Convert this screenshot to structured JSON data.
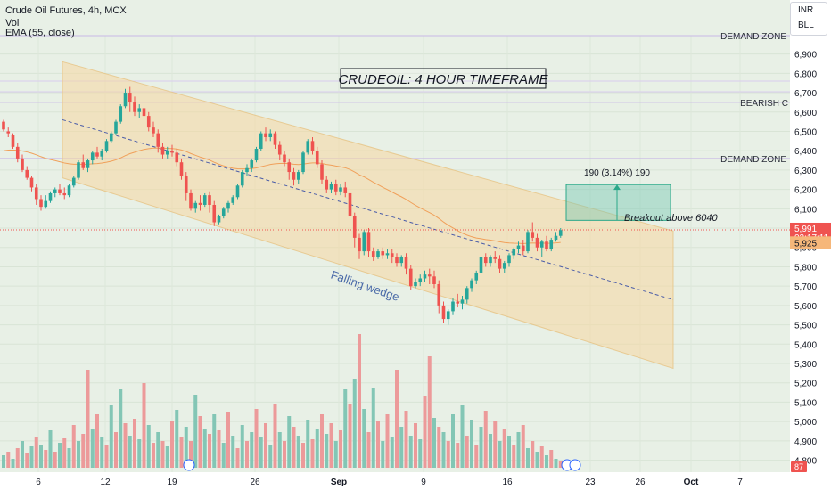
{
  "header": {
    "symbol": "Crude Oil Futures, 4h, MCX",
    "vol_label": "Vol",
    "ema_label": "EMA (55, close)",
    "currency": "INR",
    "unit": "BLL"
  },
  "chart_data": {
    "type": "candlestick",
    "title": "CRUDEOIL: 4 HOUR TIMEFRAME",
    "y_ticks": [
      "6,900",
      "6,800",
      "6,700",
      "6,600",
      "6,500",
      "6,400",
      "6,300",
      "6,200",
      "6,100",
      "6,000",
      "5,900",
      "5,800",
      "5,700",
      "5,600",
      "5,500",
      "5,400",
      "5,300",
      "5,200",
      "5,100",
      "5,000",
      "4,900",
      "4,800"
    ],
    "y_tick_values": [
      6900,
      6800,
      6700,
      6600,
      6500,
      6400,
      6300,
      6200,
      6100,
      6000,
      5900,
      5800,
      5700,
      5600,
      5500,
      5400,
      5300,
      5200,
      5100,
      5000,
      4900,
      4800
    ],
    "x_ticks": [
      "6",
      "12",
      "19",
      "26",
      "Sep",
      "9",
      "16",
      "23",
      "26",
      "Oct",
      "7"
    ],
    "ylim": [
      4775,
      6995
    ],
    "zones": [
      {
        "label": "DEMAND ZONE",
        "price": 6995
      },
      {
        "label": "BEARISH C",
        "price": 6650
      },
      {
        "label": "DEMAND ZONE",
        "price": 6360
      }
    ],
    "current_price": {
      "value": 5991,
      "label": "5,991",
      "countdown": "03:17:11"
    },
    "ema_value": {
      "value": 5925,
      "label": "5,925"
    },
    "volume_badge": "87",
    "annotations": {
      "pattern": "Falling wedge",
      "measure": "190 (3.14%) 190",
      "breakout": "Breakout above 6040"
    },
    "channel": {
      "upper": [
        [
          70,
          6860
        ],
        [
          755,
          5985
        ]
      ],
      "lower": [
        [
          70,
          6260
        ],
        [
          755,
          5275
        ]
      ],
      "mid": [
        [
          70,
          6560
        ],
        [
          755,
          5630
        ]
      ]
    },
    "target_box": {
      "from": 6040,
      "to": 6225,
      "x0": 635,
      "x1": 752
    },
    "candles": [
      [
        0,
        6550,
        6560,
        6510,
        6500
      ],
      [
        1,
        6500,
        6520,
        6490,
        6470
      ],
      [
        2,
        6480,
        6490,
        6420,
        6410
      ],
      [
        3,
        6420,
        6440,
        6360,
        6340
      ],
      [
        4,
        6360,
        6380,
        6300,
        6290
      ],
      [
        5,
        6300,
        6320,
        6260,
        6250
      ],
      [
        6,
        6260,
        6270,
        6210,
        6190
      ],
      [
        7,
        6210,
        6230,
        6150,
        6120
      ],
      [
        8,
        6150,
        6170,
        6110,
        6090
      ],
      [
        9,
        6110,
        6170,
        6140,
        6100
      ],
      [
        10,
        6140,
        6190,
        6180,
        6130
      ],
      [
        11,
        6180,
        6210,
        6200,
        6160
      ],
      [
        12,
        6200,
        6230,
        6180,
        6170
      ],
      [
        13,
        6180,
        6210,
        6170,
        6150
      ],
      [
        14,
        6170,
        6230,
        6220,
        6160
      ],
      [
        15,
        6220,
        6270,
        6260,
        6210
      ],
      [
        16,
        6260,
        6350,
        6340,
        6250
      ],
      [
        17,
        6340,
        6380,
        6310,
        6300
      ],
      [
        18,
        6310,
        6360,
        6350,
        6290
      ],
      [
        19,
        6350,
        6400,
        6390,
        6330
      ],
      [
        20,
        6390,
        6420,
        6370,
        6360
      ],
      [
        21,
        6370,
        6410,
        6400,
        6350
      ],
      [
        22,
        6400,
        6460,
        6450,
        6390
      ],
      [
        23,
        6450,
        6500,
        6490,
        6440
      ],
      [
        24,
        6490,
        6560,
        6550,
        6480
      ],
      [
        25,
        6550,
        6640,
        6630,
        6540
      ],
      [
        26,
        6630,
        6720,
        6700,
        6620
      ],
      [
        27,
        6700,
        6730,
        6650,
        6600
      ],
      [
        28,
        6650,
        6680,
        6600,
        6580
      ],
      [
        29,
        6600,
        6640,
        6620,
        6570
      ],
      [
        30,
        6620,
        6650,
        6580,
        6560
      ],
      [
        31,
        6580,
        6600,
        6520,
        6500
      ],
      [
        32,
        6520,
        6550,
        6490,
        6470
      ],
      [
        33,
        6490,
        6510,
        6420,
        6390
      ],
      [
        34,
        6420,
        6440,
        6380,
        6360
      ],
      [
        35,
        6380,
        6420,
        6400,
        6360
      ],
      [
        36,
        6400,
        6430,
        6390,
        6370
      ],
      [
        37,
        6390,
        6410,
        6340,
        6320
      ],
      [
        38,
        6340,
        6360,
        6270,
        6250
      ],
      [
        39,
        6270,
        6290,
        6180,
        6140
      ],
      [
        40,
        6180,
        6200,
        6100,
        6090
      ],
      [
        41,
        6100,
        6140,
        6130,
        6080
      ],
      [
        42,
        6130,
        6170,
        6120,
        6090
      ],
      [
        43,
        6120,
        6180,
        6170,
        6110
      ],
      [
        44,
        6170,
        6190,
        6120,
        6080
      ],
      [
        45,
        6120,
        6140,
        6030,
        6010
      ],
      [
        46,
        6030,
        6070,
        6060,
        6020
      ],
      [
        47,
        6060,
        6110,
        6100,
        6050
      ],
      [
        48,
        6100,
        6140,
        6130,
        6080
      ],
      [
        49,
        6130,
        6170,
        6160,
        6120
      ],
      [
        50,
        6160,
        6230,
        6220,
        6150
      ],
      [
        51,
        6220,
        6300,
        6290,
        6210
      ],
      [
        52,
        6290,
        6330,
        6310,
        6270
      ],
      [
        53,
        6310,
        6360,
        6350,
        6290
      ],
      [
        54,
        6350,
        6420,
        6410,
        6340
      ],
      [
        55,
        6410,
        6500,
        6490,
        6400
      ],
      [
        56,
        6490,
        6520,
        6470,
        6450
      ],
      [
        57,
        6470,
        6510,
        6490,
        6450
      ],
      [
        58,
        6490,
        6500,
        6430,
        6410
      ],
      [
        59,
        6430,
        6450,
        6380,
        6350
      ],
      [
        60,
        6380,
        6400,
        6340,
        6320
      ],
      [
        61,
        6340,
        6360,
        6290,
        6250
      ],
      [
        62,
        6290,
        6310,
        6250,
        6220
      ],
      [
        63,
        6250,
        6300,
        6290,
        6230
      ],
      [
        64,
        6290,
        6400,
        6390,
        6280
      ],
      [
        65,
        6390,
        6460,
        6450,
        6380
      ],
      [
        66,
        6450,
        6470,
        6400,
        6380
      ],
      [
        67,
        6400,
        6420,
        6330,
        6310
      ],
      [
        68,
        6330,
        6350,
        6250,
        6230
      ],
      [
        69,
        6250,
        6270,
        6200,
        6180
      ],
      [
        70,
        6200,
        6240,
        6230,
        6180
      ],
      [
        71,
        6230,
        6250,
        6190,
        6170
      ],
      [
        72,
        6190,
        6230,
        6210,
        6170
      ],
      [
        73,
        6210,
        6240,
        6180,
        6160
      ],
      [
        74,
        6180,
        6200,
        6060,
        6040
      ],
      [
        75,
        6060,
        6080,
        5950,
        5900
      ],
      [
        76,
        5950,
        5970,
        5880,
        5840
      ],
      [
        77,
        5880,
        5990,
        5980,
        5860
      ],
      [
        78,
        5980,
        6000,
        5880,
        5850
      ],
      [
        79,
        5880,
        5900,
        5850,
        5830
      ],
      [
        80,
        5850,
        5890,
        5880,
        5840
      ],
      [
        81,
        5880,
        5900,
        5860,
        5840
      ],
      [
        82,
        5860,
        5890,
        5870,
        5840
      ],
      [
        83,
        5870,
        5890,
        5850,
        5820
      ],
      [
        84,
        5850,
        5870,
        5820,
        5800
      ],
      [
        85,
        5820,
        5860,
        5850,
        5800
      ],
      [
        86,
        5850,
        5870,
        5790,
        5760
      ],
      [
        87,
        5790,
        5810,
        5700,
        5680
      ],
      [
        88,
        5700,
        5740,
        5720,
        5690
      ],
      [
        89,
        5720,
        5760,
        5740,
        5700
      ],
      [
        90,
        5740,
        5780,
        5760,
        5720
      ],
      [
        91,
        5760,
        5790,
        5750,
        5710
      ],
      [
        92,
        5750,
        5780,
        5710,
        5690
      ],
      [
        93,
        5710,
        5730,
        5600,
        5560
      ],
      [
        94,
        5600,
        5620,
        5530,
        5510
      ],
      [
        95,
        5530,
        5580,
        5570,
        5500
      ],
      [
        96,
        5570,
        5640,
        5620,
        5550
      ],
      [
        97,
        5620,
        5660,
        5610,
        5590
      ],
      [
        98,
        5610,
        5650,
        5630,
        5580
      ],
      [
        99,
        5630,
        5700,
        5690,
        5610
      ],
      [
        100,
        5690,
        5740,
        5730,
        5670
      ],
      [
        101,
        5730,
        5780,
        5770,
        5710
      ],
      [
        102,
        5770,
        5860,
        5850,
        5760
      ],
      [
        103,
        5850,
        5870,
        5820,
        5800
      ],
      [
        104,
        5820,
        5860,
        5850,
        5800
      ],
      [
        105,
        5850,
        5880,
        5840,
        5820
      ],
      [
        106,
        5840,
        5860,
        5790,
        5770
      ],
      [
        107,
        5790,
        5830,
        5820,
        5770
      ],
      [
        108,
        5820,
        5870,
        5860,
        5800
      ],
      [
        109,
        5860,
        5900,
        5890,
        5840
      ],
      [
        110,
        5890,
        5930,
        5910,
        5870
      ],
      [
        111,
        5910,
        5940,
        5880,
        5860
      ],
      [
        112,
        5880,
        5990,
        5980,
        5870
      ],
      [
        113,
        5980,
        6030,
        5950,
        5930
      ],
      [
        114,
        5950,
        5970,
        5900,
        5880
      ],
      [
        115,
        5900,
        5940,
        5930,
        5850
      ],
      [
        116,
        5930,
        5960,
        5890,
        5880
      ],
      [
        117,
        5890,
        5950,
        5940,
        5880
      ],
      [
        118,
        5940,
        5980,
        5960,
        5930
      ],
      [
        119,
        5960,
        6000,
        5990,
        5950
      ]
    ],
    "volumes": [
      [
        0,
        14,
        1
      ],
      [
        1,
        18,
        0
      ],
      [
        2,
        10,
        1
      ],
      [
        3,
        22,
        0
      ],
      [
        4,
        30,
        1
      ],
      [
        5,
        16,
        0
      ],
      [
        6,
        24,
        1
      ],
      [
        7,
        35,
        0
      ],
      [
        8,
        26,
        1
      ],
      [
        9,
        20,
        0
      ],
      [
        10,
        42,
        1
      ],
      [
        11,
        18,
        0
      ],
      [
        12,
        28,
        1
      ],
      [
        13,
        33,
        0
      ],
      [
        14,
        22,
        1
      ],
      [
        15,
        48,
        0
      ],
      [
        16,
        30,
        1
      ],
      [
        17,
        38,
        0
      ],
      [
        18,
        110,
        0
      ],
      [
        19,
        44,
        1
      ],
      [
        20,
        60,
        0
      ],
      [
        21,
        35,
        1
      ],
      [
        22,
        26,
        0
      ],
      [
        23,
        70,
        1
      ],
      [
        24,
        40,
        0
      ],
      [
        25,
        88,
        1
      ],
      [
        26,
        50,
        0
      ],
      [
        27,
        36,
        1
      ],
      [
        28,
        55,
        0
      ],
      [
        29,
        32,
        1
      ],
      [
        30,
        95,
        0
      ],
      [
        31,
        48,
        1
      ],
      [
        32,
        28,
        0
      ],
      [
        33,
        40,
        1
      ],
      [
        34,
        30,
        0
      ],
      [
        35,
        24,
        1
      ],
      [
        36,
        52,
        0
      ],
      [
        37,
        65,
        1
      ],
      [
        38,
        35,
        0
      ],
      [
        39,
        46,
        1
      ],
      [
        40,
        30,
        0
      ],
      [
        41,
        82,
        1
      ],
      [
        42,
        58,
        0
      ],
      [
        43,
        44,
        1
      ],
      [
        44,
        38,
        0
      ],
      [
        45,
        60,
        1
      ],
      [
        46,
        42,
        0
      ],
      [
        47,
        28,
        1
      ],
      [
        48,
        62,
        0
      ],
      [
        49,
        36,
        1
      ],
      [
        50,
        22,
        0
      ],
      [
        51,
        48,
        1
      ],
      [
        52,
        30,
        0
      ],
      [
        53,
        40,
        1
      ],
      [
        54,
        66,
        0
      ],
      [
        55,
        34,
        1
      ],
      [
        56,
        50,
        0
      ],
      [
        57,
        26,
        1
      ],
      [
        58,
        72,
        0
      ],
      [
        59,
        40,
        1
      ],
      [
        60,
        30,
        0
      ],
      [
        61,
        58,
        1
      ],
      [
        62,
        46,
        0
      ],
      [
        63,
        36,
        1
      ],
      [
        64,
        28,
        0
      ],
      [
        65,
        54,
        1
      ],
      [
        66,
        32,
        0
      ],
      [
        67,
        44,
        1
      ],
      [
        68,
        60,
        0
      ],
      [
        69,
        38,
        1
      ],
      [
        70,
        50,
        0
      ],
      [
        71,
        30,
        1
      ],
      [
        72,
        42,
        0
      ],
      [
        73,
        88,
        1
      ],
      [
        74,
        72,
        0
      ],
      [
        75,
        100,
        1
      ],
      [
        76,
        150,
        0
      ],
      [
        77,
        66,
        1
      ],
      [
        78,
        40,
        0
      ],
      [
        79,
        90,
        1
      ],
      [
        80,
        52,
        0
      ],
      [
        81,
        30,
        1
      ],
      [
        82,
        60,
        0
      ],
      [
        83,
        34,
        1
      ],
      [
        84,
        110,
        0
      ],
      [
        85,
        46,
        1
      ],
      [
        86,
        64,
        0
      ],
      [
        87,
        36,
        1
      ],
      [
        88,
        50,
        0
      ],
      [
        89,
        32,
        1
      ],
      [
        90,
        80,
        0
      ],
      [
        91,
        125,
        0
      ],
      [
        92,
        56,
        1
      ],
      [
        93,
        46,
        0
      ],
      [
        94,
        40,
        1
      ],
      [
        95,
        30,
        0
      ],
      [
        96,
        60,
        1
      ],
      [
        97,
        28,
        0
      ],
      [
        98,
        70,
        1
      ],
      [
        99,
        36,
        0
      ],
      [
        100,
        54,
        1
      ],
      [
        101,
        26,
        0
      ],
      [
        102,
        46,
        1
      ],
      [
        103,
        64,
        0
      ],
      [
        104,
        38,
        1
      ],
      [
        105,
        52,
        0
      ],
      [
        106,
        30,
        1
      ],
      [
        107,
        44,
        0
      ],
      [
        108,
        36,
        1
      ],
      [
        109,
        26,
        0
      ],
      [
        110,
        40,
        1
      ],
      [
        111,
        48,
        0
      ],
      [
        112,
        22,
        1
      ],
      [
        113,
        30,
        0
      ],
      [
        114,
        18,
        1
      ],
      [
        115,
        24,
        0
      ],
      [
        116,
        14,
        1
      ],
      [
        117,
        20,
        0
      ],
      [
        118,
        10,
        1
      ],
      [
        119,
        8,
        0
      ]
    ]
  }
}
